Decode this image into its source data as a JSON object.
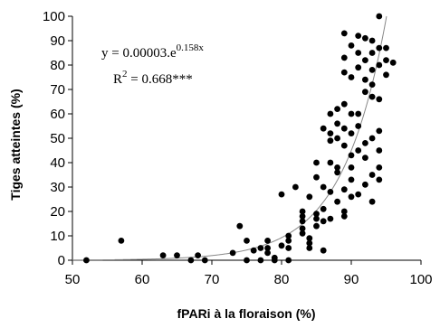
{
  "chart_data": {
    "type": "scatter",
    "xlabel": "fPARi à la floraison (%)",
    "ylabel": "Tiges atteintes (%)",
    "xlim": [
      50,
      100
    ],
    "ylim": [
      0,
      100
    ],
    "xticks": [
      "50",
      "60",
      "70",
      "80",
      "90",
      "100"
    ],
    "yticks": [
      "0",
      "10",
      "20",
      "30",
      "40",
      "50",
      "60",
      "70",
      "80",
      "90",
      "100"
    ],
    "grid": false,
    "legend": "none",
    "annotations": {
      "equation_base": "y = 0.00003.e",
      "equation_exponent": "0.158x",
      "r2_base": "R",
      "r2_exponent": "2",
      "r2_value": " = 0.668***"
    },
    "fit": {
      "type": "exponential",
      "a": 3e-05,
      "b": 0.158
    },
    "points": [
      {
        "x": 52,
        "y": 0
      },
      {
        "x": 57,
        "y": 8
      },
      {
        "x": 63,
        "y": 2
      },
      {
        "x": 65,
        "y": 2
      },
      {
        "x": 67,
        "y": 0
      },
      {
        "x": 68,
        "y": 2
      },
      {
        "x": 69,
        "y": 0
      },
      {
        "x": 73,
        "y": 3
      },
      {
        "x": 74,
        "y": 14
      },
      {
        "x": 75,
        "y": 8
      },
      {
        "x": 75,
        "y": 0
      },
      {
        "x": 76,
        "y": 4
      },
      {
        "x": 77,
        "y": 5
      },
      {
        "x": 77,
        "y": 0
      },
      {
        "x": 78,
        "y": 8
      },
      {
        "x": 78,
        "y": 5
      },
      {
        "x": 78,
        "y": 3
      },
      {
        "x": 79,
        "y": 1
      },
      {
        "x": 79,
        "y": 0
      },
      {
        "x": 80,
        "y": 6
      },
      {
        "x": 80,
        "y": 27
      },
      {
        "x": 81,
        "y": 10
      },
      {
        "x": 81,
        "y": 8
      },
      {
        "x": 81,
        "y": 5
      },
      {
        "x": 81,
        "y": 0
      },
      {
        "x": 82,
        "y": 30
      },
      {
        "x": 83,
        "y": 20
      },
      {
        "x": 83,
        "y": 18
      },
      {
        "x": 83,
        "y": 16
      },
      {
        "x": 83,
        "y": 13
      },
      {
        "x": 83,
        "y": 11
      },
      {
        "x": 84,
        "y": 9
      },
      {
        "x": 84,
        "y": 7
      },
      {
        "x": 84,
        "y": 5
      },
      {
        "x": 84,
        "y": 26
      },
      {
        "x": 85,
        "y": 40
      },
      {
        "x": 85,
        "y": 34
      },
      {
        "x": 85,
        "y": 19
      },
      {
        "x": 85,
        "y": 17
      },
      {
        "x": 85,
        "y": 14
      },
      {
        "x": 86,
        "y": 54
      },
      {
        "x": 86,
        "y": 4
      },
      {
        "x": 86,
        "y": 21
      },
      {
        "x": 86,
        "y": 16
      },
      {
        "x": 86,
        "y": 30
      },
      {
        "x": 87,
        "y": 40
      },
      {
        "x": 87,
        "y": 52
      },
      {
        "x": 87,
        "y": 60
      },
      {
        "x": 87,
        "y": 49
      },
      {
        "x": 87,
        "y": 17
      },
      {
        "x": 87,
        "y": 28
      },
      {
        "x": 88,
        "y": 62
      },
      {
        "x": 88,
        "y": 56
      },
      {
        "x": 88,
        "y": 50
      },
      {
        "x": 88,
        "y": 36
      },
      {
        "x": 88,
        "y": 24
      },
      {
        "x": 88,
        "y": 38
      },
      {
        "x": 89,
        "y": 93
      },
      {
        "x": 89,
        "y": 83
      },
      {
        "x": 89,
        "y": 77
      },
      {
        "x": 89,
        "y": 64
      },
      {
        "x": 89,
        "y": 54
      },
      {
        "x": 89,
        "y": 47
      },
      {
        "x": 89,
        "y": 29
      },
      {
        "x": 89,
        "y": 20
      },
      {
        "x": 89,
        "y": 18
      },
      {
        "x": 90,
        "y": 88
      },
      {
        "x": 90,
        "y": 75
      },
      {
        "x": 90,
        "y": 60
      },
      {
        "x": 90,
        "y": 52
      },
      {
        "x": 90,
        "y": 43
      },
      {
        "x": 90,
        "y": 38
      },
      {
        "x": 90,
        "y": 33
      },
      {
        "x": 90,
        "y": 26
      },
      {
        "x": 91,
        "y": 92
      },
      {
        "x": 91,
        "y": 85
      },
      {
        "x": 91,
        "y": 79
      },
      {
        "x": 91,
        "y": 60
      },
      {
        "x": 91,
        "y": 55
      },
      {
        "x": 91,
        "y": 45
      },
      {
        "x": 91,
        "y": 27
      },
      {
        "x": 92,
        "y": 91
      },
      {
        "x": 92,
        "y": 82
      },
      {
        "x": 92,
        "y": 74
      },
      {
        "x": 92,
        "y": 69
      },
      {
        "x": 92,
        "y": 48
      },
      {
        "x": 92,
        "y": 42
      },
      {
        "x": 92,
        "y": 31
      },
      {
        "x": 93,
        "y": 90
      },
      {
        "x": 93,
        "y": 85
      },
      {
        "x": 93,
        "y": 78
      },
      {
        "x": 93,
        "y": 72
      },
      {
        "x": 93,
        "y": 67
      },
      {
        "x": 93,
        "y": 50
      },
      {
        "x": 93,
        "y": 35
      },
      {
        "x": 93,
        "y": 24
      },
      {
        "x": 94,
        "y": 100
      },
      {
        "x": 94,
        "y": 87
      },
      {
        "x": 94,
        "y": 80
      },
      {
        "x": 94,
        "y": 66
      },
      {
        "x": 94,
        "y": 53
      },
      {
        "x": 94,
        "y": 45
      },
      {
        "x": 94,
        "y": 38
      },
      {
        "x": 94,
        "y": 33
      },
      {
        "x": 95,
        "y": 87
      },
      {
        "x": 95,
        "y": 82
      },
      {
        "x": 95,
        "y": 76
      },
      {
        "x": 96,
        "y": 81
      }
    ]
  }
}
